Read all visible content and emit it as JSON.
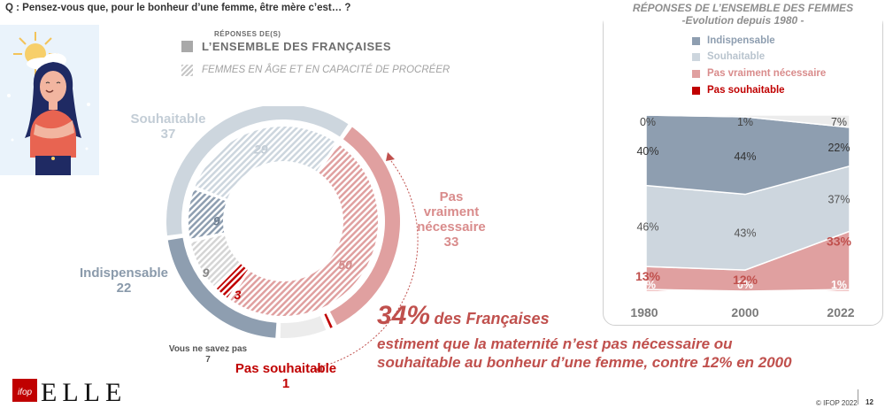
{
  "question": "Q : Pensez-vous que, pour le bonheur d’une femme, être mère c’est… ?",
  "legend": {
    "title": "RÉPONSES DE(S)",
    "item1": "L’ENSEMBLE DES FRANÇAISES",
    "item2": "FEMMES EN ÂGE ET EN CAPACITÉ DE PROCRÉER"
  },
  "colors": {
    "indispensable": "#8e9eb0",
    "souhaitable": "#cdd6de",
    "pas_vraiment": "#e0a0a0",
    "pas_souhaitable": "#c00000",
    "nsp": "#ececec"
  },
  "donut_labels": {
    "souhaitable_name": "Souhaitable",
    "souhaitable_value": "37",
    "indispensable_name": "Indispensable",
    "indispensable_value": "22",
    "pas_vraiment_l1": "Pas",
    "pas_vraiment_l2": "vraiment",
    "pas_vraiment_l3": "nécessaire",
    "pas_vraiment_value": "33",
    "nsp_name": "Vous ne savez pas",
    "nsp_value": "7",
    "pas_souhaitable_name": "Pas souhaitable",
    "pas_souhaitable_value": "1"
  },
  "callout": {
    "big": "34%",
    "rest": "des Françaises",
    "line2": "estiment que la maternité n’est pas nécessaire ou",
    "line3": "souhaitable au bonheur d’une femme, contre 12% en 2000"
  },
  "right_panel": {
    "title_l1": "RÉPONSES DE L’ENSEMBLE DES FEMMES",
    "title_l2": "-Evolution depuis 1980 -",
    "legend": [
      "Indispensable",
      "Souhaitable",
      "Pas vraiment nécessaire",
      "Pas souhaitable"
    ]
  },
  "chart_data": [
    {
      "type": "pie",
      "variant": "double donut",
      "series": [
        {
          "name": "L’ENSEMBLE DES FRANÇAISES",
          "categories": [
            "Pas vraiment nécessaire",
            "Pas souhaitable",
            "Vous ne savez pas",
            "Indispensable",
            "Souhaitable"
          ],
          "values": [
            33,
            1,
            7,
            22,
            37
          ]
        },
        {
          "name": "FEMMES EN ÂGE ET EN CAPACITÉ DE PROCRÉER",
          "categories": [
            "Pas vraiment nécessaire",
            "Pas souhaitable",
            "Vous ne savez pas",
            "Indispensable",
            "Souhaitable"
          ],
          "values": [
            50,
            3,
            9,
            9,
            29
          ]
        }
      ]
    },
    {
      "type": "area",
      "stacked": true,
      "title": "RÉPONSES DE L’ENSEMBLE DES FEMMES -Evolution depuis 1980 -",
      "x": [
        "1980",
        "2000",
        "2022"
      ],
      "series": [
        {
          "name": "Pas souhaitable",
          "values": [
            1,
            0,
            1
          ],
          "labels": [
            "1%",
            "0%",
            "1%"
          ]
        },
        {
          "name": "Pas vraiment nécessaire",
          "values": [
            13,
            12,
            33
          ],
          "labels": [
            "13%",
            "12%",
            "33%"
          ]
        },
        {
          "name": "Souhaitable",
          "values": [
            46,
            43,
            37
          ],
          "labels": [
            "46%",
            "43%",
            "37%"
          ]
        },
        {
          "name": "Indispensable",
          "values": [
            40,
            44,
            22
          ],
          "labels": [
            "40%",
            "44%",
            "22%"
          ]
        },
        {
          "name": "Vous ne savez pas",
          "values": [
            0,
            1,
            7
          ],
          "labels": [
            "0%",
            "1%",
            "7%"
          ]
        }
      ],
      "ylim": [
        0,
        100
      ]
    }
  ],
  "footer": {
    "copyright": "© IFOP 2022",
    "page": "12",
    "logo_ifop": "ifop",
    "logo_elle": "ELLE"
  }
}
